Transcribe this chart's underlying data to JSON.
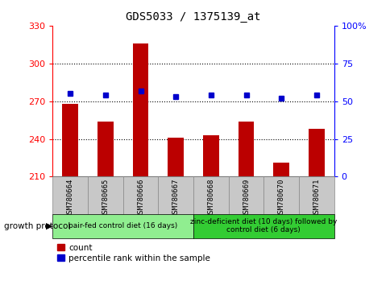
{
  "title": "GDS5033 / 1375139_at",
  "samples": [
    "GSM780664",
    "GSM780665",
    "GSM780666",
    "GSM780667",
    "GSM780668",
    "GSM780669",
    "GSM780670",
    "GSM780671"
  ],
  "counts": [
    268,
    254,
    316,
    241,
    243,
    254,
    221,
    248
  ],
  "percentiles": [
    55,
    54,
    57,
    53,
    54,
    54,
    52,
    54
  ],
  "ylim_left": [
    210,
    330
  ],
  "ylim_right": [
    0,
    100
  ],
  "yticks_left": [
    210,
    240,
    270,
    300,
    330
  ],
  "yticks_right": [
    0,
    25,
    50,
    75,
    100
  ],
  "bar_color": "#bb0000",
  "dot_color": "#0000cc",
  "bar_bottom": 210,
  "group1_label": "pair-fed control diet (16 days)",
  "group2_label": "zinc-deficient diet (10 days) followed by\ncontrol diet (6 days)",
  "group1_indices": [
    0,
    1,
    2,
    3
  ],
  "group2_indices": [
    4,
    5,
    6,
    7
  ],
  "growth_protocol_label": "growth protocol",
  "legend_count_label": "count",
  "legend_percentile_label": "percentile rank within the sample",
  "tick_area_color": "#c8c8c8",
  "group1_color": "#90ee90",
  "group2_color": "#33cc33",
  "sample_box_edgecolor": "#888888"
}
